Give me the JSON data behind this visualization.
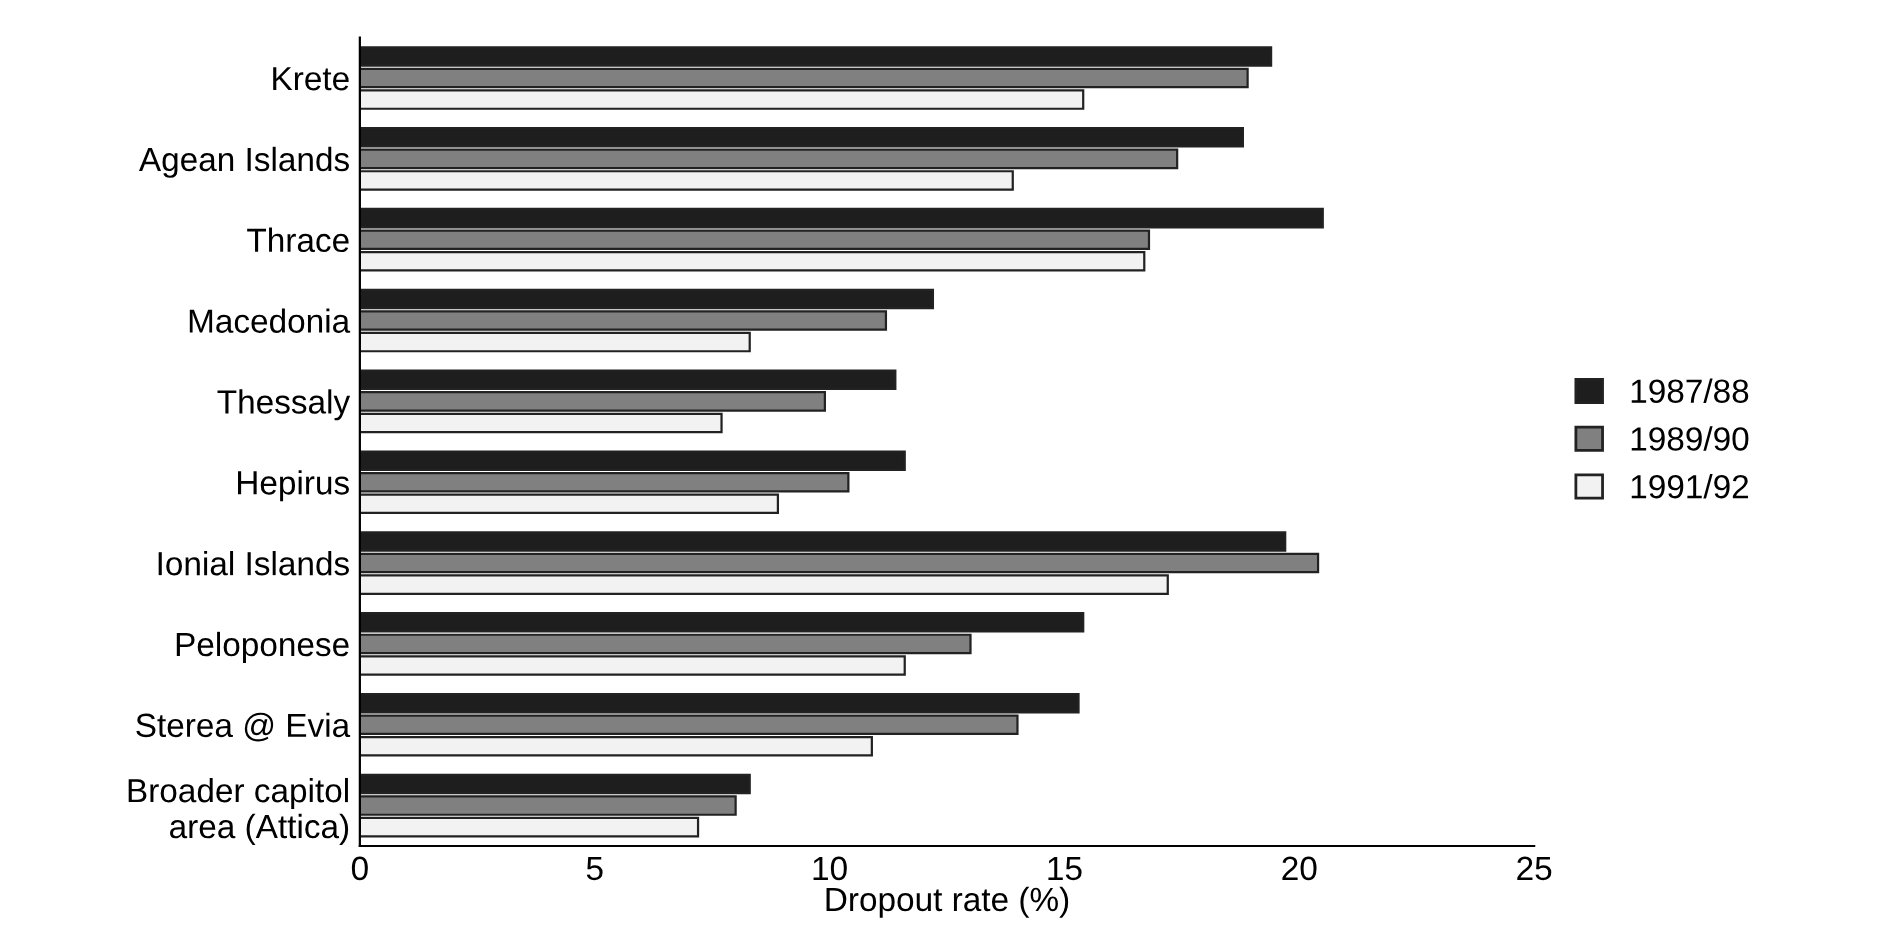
{
  "chart_data": {
    "type": "bar",
    "orientation": "horizontal",
    "xlabel": "Dropout rate (%)",
    "categories": [
      "Krete",
      "Agean Islands",
      "Thrace",
      "Macedonia",
      "Thessaly",
      "Hepirus",
      "Ionial Islands",
      "Peloponese",
      "Sterea @ Evia",
      "Broader capitol\narea (Attica)"
    ],
    "series": [
      {
        "name": "1987/88",
        "color": "#1e1e1e",
        "values": [
          19.4,
          18.8,
          20.5,
          12.2,
          11.4,
          11.6,
          19.7,
          15.4,
          15.3,
          8.3
        ]
      },
      {
        "name": "1989/90",
        "color": "#808080",
        "values": [
          18.9,
          17.4,
          16.8,
          11.2,
          9.9,
          10.4,
          20.4,
          13.0,
          14.0,
          8.0
        ]
      },
      {
        "name": "1991/92",
        "color": "#f2f2f2",
        "values": [
          15.4,
          13.9,
          16.7,
          8.3,
          7.7,
          8.9,
          17.2,
          11.6,
          10.9,
          7.2
        ]
      }
    ],
    "xlim": [
      0,
      25
    ],
    "xticks": [
      0,
      5,
      10,
      15,
      20,
      25
    ],
    "grid": false,
    "legend": "right"
  }
}
